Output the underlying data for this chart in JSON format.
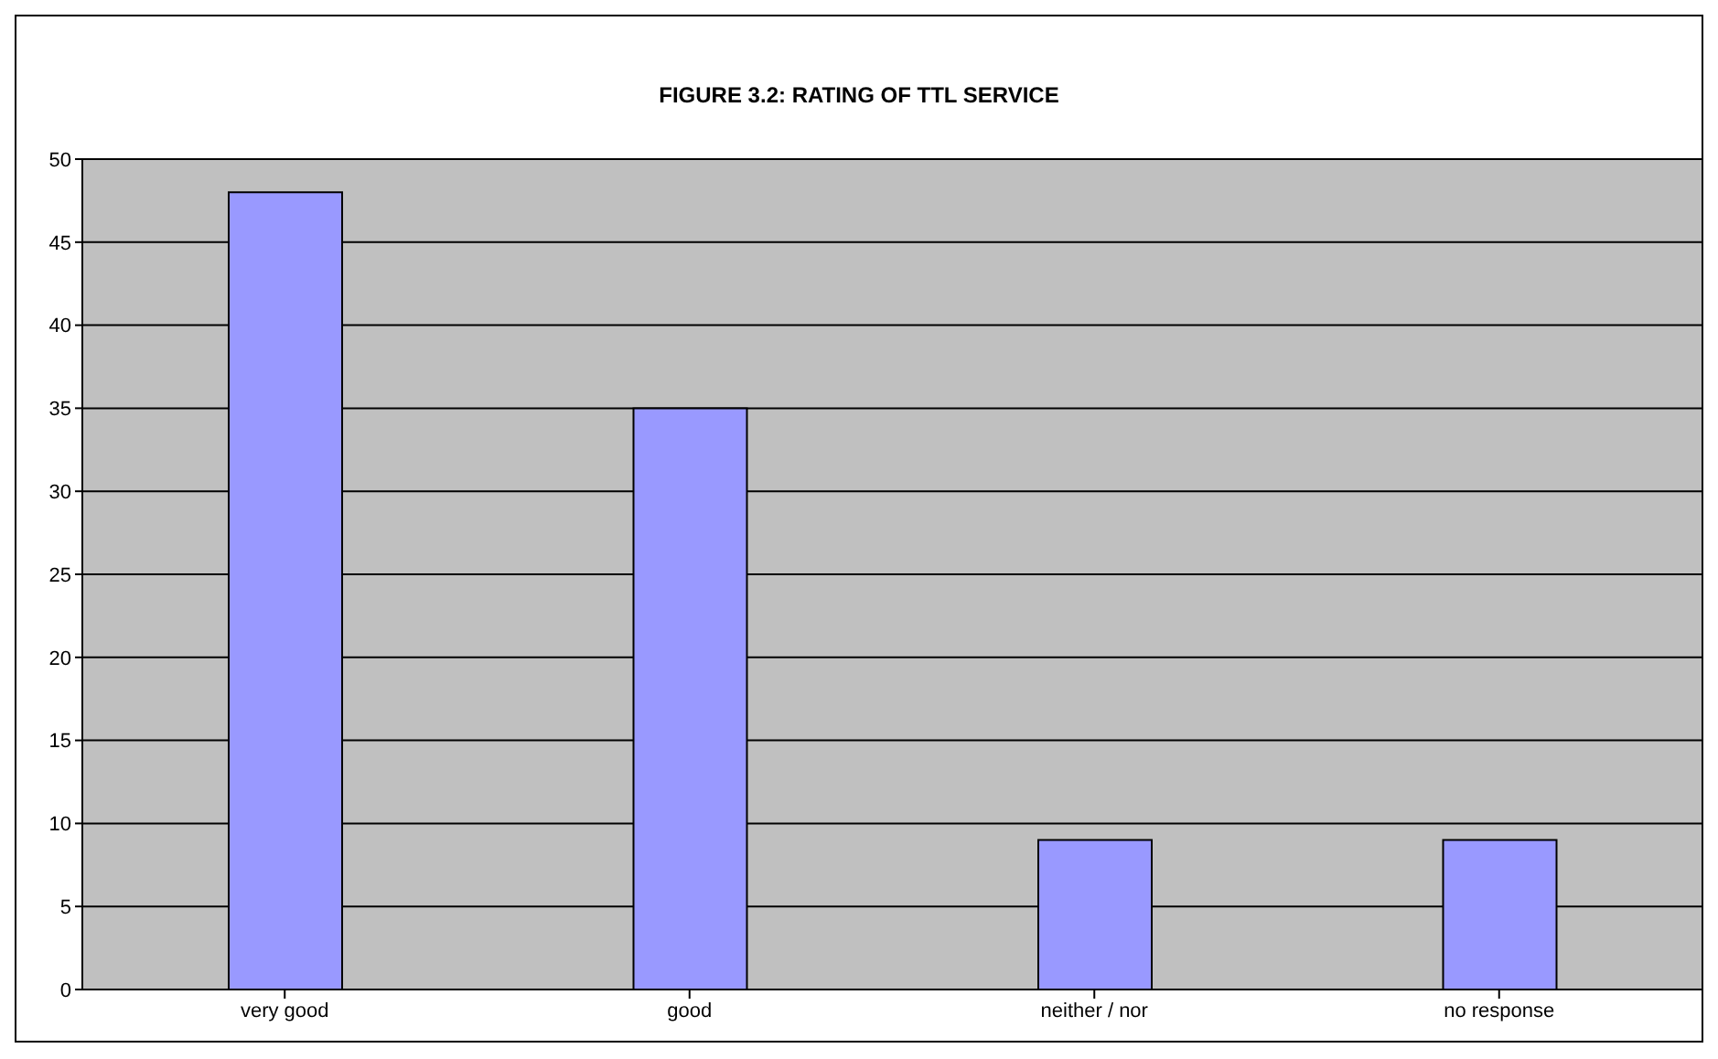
{
  "chart_data": {
    "type": "bar",
    "title": "FIGURE 3.2: RATING OF TTL SERVICE",
    "categories": [
      "very good",
      "good",
      "neither / nor",
      "no response"
    ],
    "values": [
      48,
      35,
      9,
      9
    ],
    "color": "#9999ff",
    "ylim": [
      0,
      50
    ],
    "yticks": [
      0,
      5,
      10,
      15,
      20,
      25,
      30,
      35,
      40,
      45,
      50
    ],
    "grid": "y"
  }
}
